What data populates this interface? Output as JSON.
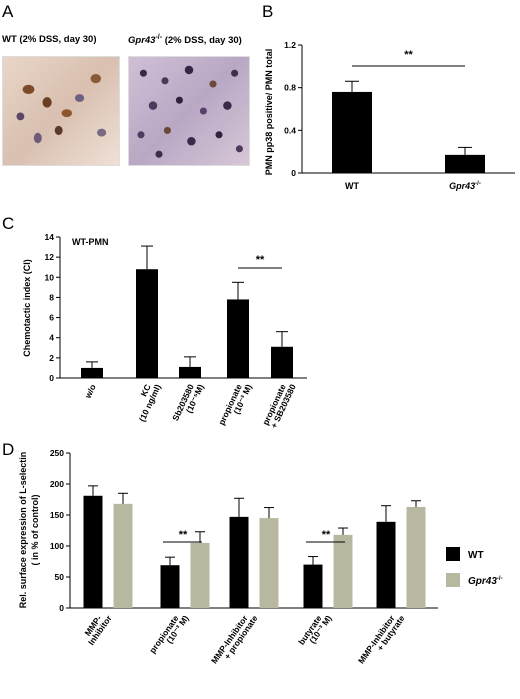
{
  "panels": {
    "a": {
      "letter": "A",
      "images": [
        {
          "caption_strain": "WT",
          "caption_condition": " (2% DSS, day 30)"
        },
        {
          "caption_strain": "Gpr43",
          "caption_sup": "-/-",
          "caption_condition": " (2% DSS, day 30)"
        }
      ]
    },
    "b": {
      "letter": "B"
    },
    "c": {
      "letter": "C"
    },
    "d": {
      "letter": "D"
    }
  },
  "chart_data": [
    {
      "id": "B",
      "type": "bar",
      "ylabel_line1": "PMN pp38 positive/ PMN total",
      "ylim": [
        0,
        1.2
      ],
      "yticks": [
        "0",
        "0.4",
        "0.8",
        "1.2"
      ],
      "categories": [
        "WT",
        "Gpr43"
      ],
      "category_sup": [
        "",
        "-/-"
      ],
      "values": [
        0.76,
        0.17
      ],
      "errors": [
        0.1,
        0.07
      ],
      "bar_color": "#000000",
      "significance": {
        "label": "**",
        "from": 0,
        "to": 1
      }
    },
    {
      "id": "C",
      "type": "bar",
      "title": "WT-PMN",
      "ylabel": "Chemotactic index (CI)",
      "ylim": [
        0,
        14
      ],
      "yticks": [
        "0",
        "2",
        "4",
        "6",
        "8",
        "10",
        "12",
        "14"
      ],
      "categories": [
        [
          "w/o"
        ],
        [
          "KC",
          "(10 ng/ml)"
        ],
        [
          "Sb203580",
          "(10⁻⁵M)"
        ],
        [
          "propionate",
          "(10⁻³ M)"
        ],
        [
          "propionate",
          "+ SB203580"
        ]
      ],
      "values": [
        1.0,
        10.8,
        1.1,
        7.8,
        3.1
      ],
      "errors": [
        0.6,
        2.3,
        1.0,
        1.7,
        1.5
      ],
      "bar_color": "#000000",
      "significance": {
        "label": "**",
        "from": 3,
        "to": 4
      }
    },
    {
      "id": "D",
      "type": "bar",
      "ylabel_line1": "Rel. surface expression of L-selectin",
      "ylabel_line2": "( in % of control)",
      "ylim": [
        0,
        250
      ],
      "yticks": [
        "0",
        "50",
        "100",
        "150",
        "200",
        "250"
      ],
      "categories": [
        [
          "MMP-",
          "Inhibitor"
        ],
        [
          "propionate",
          "(10⁻³ M)"
        ],
        [
          "MMP-Inhibitor",
          "+ propionate"
        ],
        [
          "butyrate",
          "(10⁻³ M)"
        ],
        [
          "MMP-Inhibitor",
          "+ butyrate"
        ]
      ],
      "series": [
        {
          "name": "WT",
          "color": "#000000",
          "values": [
            181,
            69,
            147,
            70,
            139
          ],
          "errors": [
            16,
            13,
            30,
            13,
            26
          ]
        },
        {
          "name": "Gpr43",
          "name_sup": "-/-",
          "color": "#b8b8a0",
          "values": [
            168,
            105,
            145,
            118,
            163
          ],
          "errors": [
            17,
            18,
            17,
            11,
            10
          ]
        }
      ],
      "legend_position": "right",
      "significance": [
        {
          "label": "**",
          "group": 1
        },
        {
          "label": "**",
          "group": 3
        }
      ]
    }
  ]
}
